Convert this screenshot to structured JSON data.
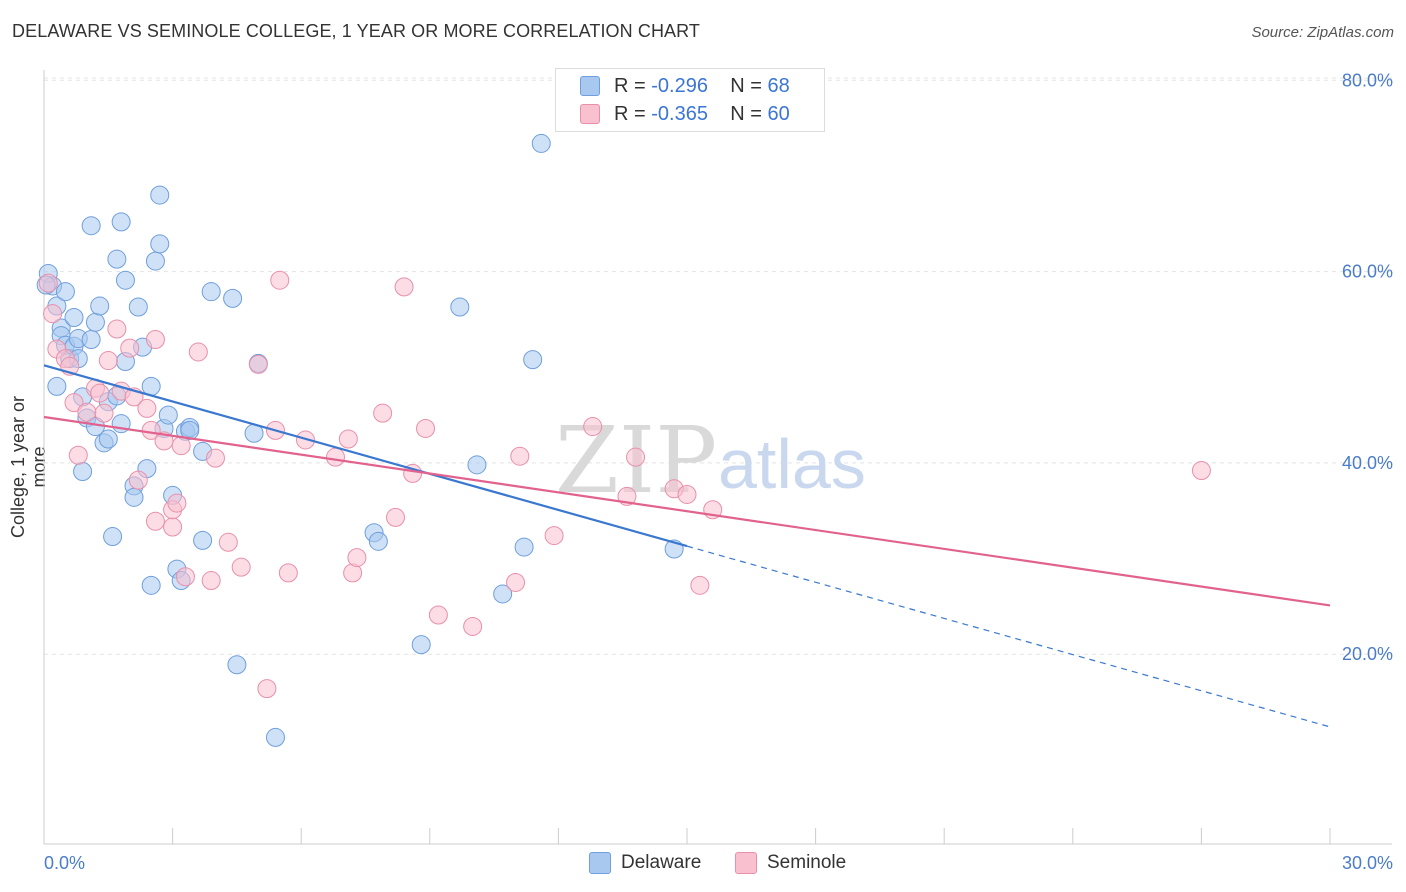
{
  "title": "DELAWARE VS SEMINOLE COLLEGE, 1 YEAR OR MORE CORRELATION CHART",
  "source": "Source: ZipAtlas.com",
  "watermark": {
    "zip": "ZIP",
    "atlas": "atlas"
  },
  "legend": {
    "rows": [
      {
        "r_label": "R =",
        "r_value": "-0.296",
        "n_label": "N =",
        "n_value": "68",
        "color": "#a8c8f0",
        "stroke": "#6f9fdc"
      },
      {
        "r_label": "R =",
        "r_value": "-0.365",
        "n_label": "N =",
        "n_value": "60",
        "color": "#f9c0d0",
        "stroke": "#e890aa"
      }
    ]
  },
  "bottom_legend": [
    {
      "label": "Delaware",
      "color": "#a8c8f0",
      "stroke": "#6f9fdc"
    },
    {
      "label": "Seminole",
      "color": "#f9c0d0",
      "stroke": "#e890aa"
    }
  ],
  "chart_data": {
    "type": "scatter",
    "title": "DELAWARE VS SEMINOLE COLLEGE, 1 YEAR OR MORE CORRELATION CHART",
    "xlabel": "",
    "ylabel": "College, 1 year or more",
    "xlim": [
      0,
      30
    ],
    "ylim": [
      2,
      82
    ],
    "x_tick_labels": [
      {
        "value": 0,
        "label": "0.0%"
      },
      {
        "value": 30,
        "label": "30.0%"
      }
    ],
    "y_tick_labels": [
      {
        "value": 20,
        "label": "20.0%"
      },
      {
        "value": 40,
        "label": "40.0%"
      },
      {
        "value": 60,
        "label": "60.0%"
      },
      {
        "value": 80,
        "label": "80.0%"
      }
    ],
    "x_minor_ticks": [
      3,
      6,
      9,
      12,
      15,
      18,
      21,
      24,
      27,
      30
    ],
    "grid": true,
    "series": [
      {
        "name": "Delaware",
        "color": "#a8c8f0",
        "stroke": "#6f9fdc",
        "trend": {
          "x0": 0,
          "y0": 50.2,
          "x1": 15,
          "y1": 31.3,
          "dash_to_x": 30,
          "dash_to_y": 12.4,
          "color": "#3a78d0"
        },
        "points": [
          [
            0.1,
            59.8
          ],
          [
            0.2,
            58.5
          ],
          [
            0.3,
            56.4
          ],
          [
            0.3,
            48.0
          ],
          [
            0.4,
            54.1
          ],
          [
            0.4,
            53.3
          ],
          [
            0.5,
            52.3
          ],
          [
            0.5,
            57.9
          ],
          [
            0.6,
            50.9
          ],
          [
            0.7,
            52.2
          ],
          [
            0.7,
            55.2
          ],
          [
            0.8,
            50.9
          ],
          [
            0.8,
            53.0
          ],
          [
            0.9,
            39.1
          ],
          [
            0.9,
            46.9
          ],
          [
            1.0,
            44.7
          ],
          [
            1.1,
            64.8
          ],
          [
            1.1,
            52.9
          ],
          [
            1.2,
            43.8
          ],
          [
            1.2,
            54.7
          ],
          [
            1.3,
            56.4
          ],
          [
            1.4,
            42.1
          ],
          [
            1.5,
            42.5
          ],
          [
            1.5,
            46.4
          ],
          [
            1.6,
            32.3
          ],
          [
            1.7,
            61.3
          ],
          [
            1.7,
            47.0
          ],
          [
            1.8,
            65.2
          ],
          [
            1.8,
            44.1
          ],
          [
            1.9,
            59.1
          ],
          [
            1.9,
            50.6
          ],
          [
            2.1,
            37.6
          ],
          [
            2.1,
            36.4
          ],
          [
            2.2,
            56.3
          ],
          [
            2.3,
            52.1
          ],
          [
            2.4,
            39.4
          ],
          [
            2.5,
            27.2
          ],
          [
            2.5,
            48.0
          ],
          [
            2.6,
            61.1
          ],
          [
            2.7,
            62.9
          ],
          [
            2.7,
            68.0
          ],
          [
            2.8,
            43.6
          ],
          [
            2.9,
            45.0
          ],
          [
            3.0,
            36.6
          ],
          [
            3.1,
            28.9
          ],
          [
            3.2,
            27.7
          ],
          [
            3.3,
            43.3
          ],
          [
            3.4,
            43.7
          ],
          [
            3.7,
            41.2
          ],
          [
            3.7,
            31.9
          ],
          [
            3.9,
            57.9
          ],
          [
            4.4,
            57.2
          ],
          [
            4.5,
            18.9
          ],
          [
            4.9,
            43.1
          ],
          [
            5.0,
            50.4
          ],
          [
            5.4,
            11.3
          ],
          [
            7.7,
            32.7
          ],
          [
            7.8,
            31.8
          ],
          [
            8.8,
            21.0
          ],
          [
            9.7,
            56.3
          ],
          [
            10.1,
            39.8
          ],
          [
            10.7,
            26.3
          ],
          [
            11.2,
            31.2
          ],
          [
            11.4,
            50.8
          ],
          [
            11.6,
            73.4
          ],
          [
            14.7,
            31.0
          ],
          [
            0.05,
            58.6
          ],
          [
            3.4,
            43.4
          ]
        ]
      },
      {
        "name": "Seminole",
        "color": "#f9c0d0",
        "stroke": "#e890aa",
        "trend": {
          "x0": 0,
          "y0": 44.8,
          "x1": 30,
          "y1": 25.1,
          "color": "#e2628e"
        },
        "points": [
          [
            0.1,
            58.8
          ],
          [
            0.2,
            55.6
          ],
          [
            0.3,
            51.9
          ],
          [
            0.5,
            50.9
          ],
          [
            0.6,
            50.1
          ],
          [
            0.7,
            46.3
          ],
          [
            0.8,
            40.8
          ],
          [
            1.0,
            45.3
          ],
          [
            1.2,
            47.8
          ],
          [
            1.3,
            47.3
          ],
          [
            1.4,
            45.2
          ],
          [
            1.5,
            50.7
          ],
          [
            1.7,
            54.0
          ],
          [
            1.8,
            47.5
          ],
          [
            2.0,
            52.0
          ],
          [
            2.1,
            46.9
          ],
          [
            2.2,
            38.2
          ],
          [
            2.4,
            45.7
          ],
          [
            2.5,
            43.4
          ],
          [
            2.6,
            33.9
          ],
          [
            2.6,
            52.9
          ],
          [
            2.8,
            42.3
          ],
          [
            3.0,
            33.3
          ],
          [
            3.0,
            35.1
          ],
          [
            3.1,
            35.8
          ],
          [
            3.2,
            41.8
          ],
          [
            3.3,
            28.1
          ],
          [
            3.6,
            51.6
          ],
          [
            3.9,
            27.7
          ],
          [
            4.0,
            40.5
          ],
          [
            4.3,
            31.7
          ],
          [
            4.6,
            29.1
          ],
          [
            5.0,
            50.3
          ],
          [
            5.2,
            16.4
          ],
          [
            5.4,
            43.4
          ],
          [
            5.5,
            59.1
          ],
          [
            5.7,
            28.5
          ],
          [
            6.1,
            42.4
          ],
          [
            6.8,
            40.6
          ],
          [
            7.1,
            42.5
          ],
          [
            7.2,
            28.5
          ],
          [
            7.3,
            30.1
          ],
          [
            7.9,
            45.2
          ],
          [
            8.2,
            34.3
          ],
          [
            8.4,
            58.4
          ],
          [
            8.6,
            38.9
          ],
          [
            8.9,
            43.6
          ],
          [
            9.2,
            24.1
          ],
          [
            10.0,
            22.9
          ],
          [
            11.0,
            27.5
          ],
          [
            11.1,
            40.7
          ],
          [
            11.9,
            32.4
          ],
          [
            12.8,
            43.8
          ],
          [
            13.6,
            36.5
          ],
          [
            13.8,
            40.6
          ],
          [
            14.7,
            37.3
          ],
          [
            15.0,
            36.7
          ],
          [
            15.3,
            27.2
          ],
          [
            15.6,
            35.1
          ],
          [
            27.0,
            39.2
          ]
        ]
      }
    ]
  }
}
